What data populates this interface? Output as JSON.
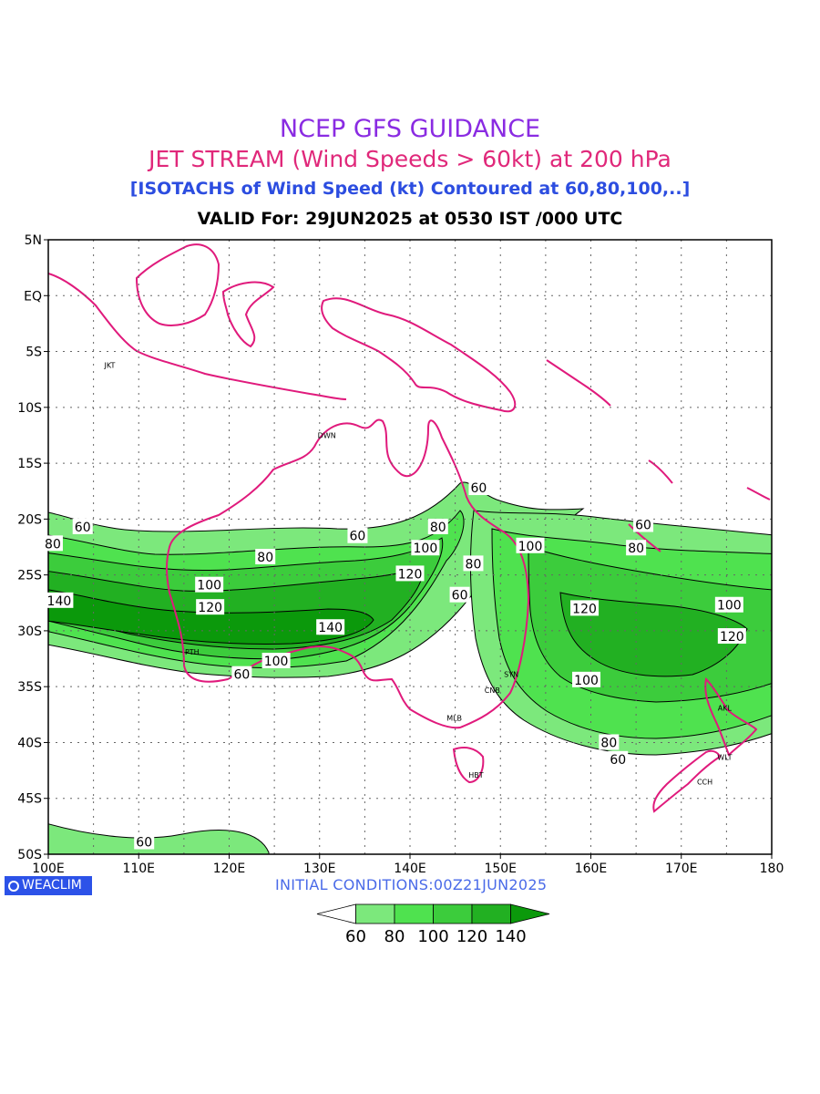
{
  "titles": {
    "line1": "NCEP GFS GUIDANCE",
    "line2": "JET STREAM (Wind Speeds > 60kt) at 200 hPa",
    "line3": "[ISOTACHS of Wind Speed (kt) Contoured at 60,80,100,..]",
    "line4": "VALID For: 29JUN2025 at 0530 IST /000 UTC"
  },
  "logo": "WEACLIM",
  "initial_conditions": "INITIAL  CONDITIONS:00Z21JUN2025",
  "axes": {
    "lat_labels": [
      "5N",
      "EQ",
      "5S",
      "10S",
      "15S",
      "20S",
      "25S",
      "30S",
      "35S",
      "40S",
      "45S",
      "50S"
    ],
    "lon_labels": [
      "100E",
      "110E",
      "120E",
      "130E",
      "140E",
      "150E",
      "160E",
      "170E",
      "180"
    ]
  },
  "cities": [
    {
      "code": "JKT",
      "lon": 106.8,
      "lat": -6.2
    },
    {
      "code": "DWN",
      "lon": 130.8,
      "lat": -12.5
    },
    {
      "code": "PTH",
      "lon": 115.9,
      "lat": -31.9
    },
    {
      "code": "SYN",
      "lon": 151.2,
      "lat": -33.9
    },
    {
      "code": "CNB",
      "lon": 149.1,
      "lat": -35.3
    },
    {
      "code": "MLB",
      "lon": 144.9,
      "lat": -37.8
    },
    {
      "code": "HBT",
      "lon": 147.3,
      "lat": -42.9
    },
    {
      "code": "AKL",
      "lon": 174.8,
      "lat": -36.9
    },
    {
      "code": "WLT",
      "lon": 174.8,
      "lat": -41.3
    },
    {
      "code": "CCH",
      "lon": 172.6,
      "lat": -43.5
    }
  ],
  "contour_labels": [
    {
      "text": "60",
      "lon": 103.8,
      "lat": -20.7
    },
    {
      "text": "80",
      "lon": 100.5,
      "lat": -22.2
    },
    {
      "text": "140",
      "lon": 101.2,
      "lat": -27.3
    },
    {
      "text": "100",
      "lon": 117.8,
      "lat": -25.9
    },
    {
      "text": "120",
      "lon": 117.9,
      "lat": -27.9
    },
    {
      "text": "80",
      "lon": 124.0,
      "lat": -23.4
    },
    {
      "text": "60",
      "lon": 134.2,
      "lat": -21.5
    },
    {
      "text": "100",
      "lon": 141.7,
      "lat": -22.6
    },
    {
      "text": "120",
      "lon": 140.0,
      "lat": -24.9
    },
    {
      "text": "80",
      "lon": 143.1,
      "lat": -20.7
    },
    {
      "text": "60",
      "lon": 147.6,
      "lat": -17.2
    },
    {
      "text": "80",
      "lon": 147.0,
      "lat": -24.0
    },
    {
      "text": "60",
      "lon": 145.5,
      "lat": -26.8
    },
    {
      "text": "140",
      "lon": 131.2,
      "lat": -29.7
    },
    {
      "text": "100",
      "lon": 125.2,
      "lat": -32.7
    },
    {
      "text": "60",
      "lon": 121.4,
      "lat": -33.9
    },
    {
      "text": "100",
      "lon": 153.3,
      "lat": -22.4
    },
    {
      "text": "60",
      "lon": 165.8,
      "lat": -20.5
    },
    {
      "text": "80",
      "lon": 165.0,
      "lat": -22.6
    },
    {
      "text": "120",
      "lon": 159.3,
      "lat": -28.0
    },
    {
      "text": "100",
      "lon": 175.3,
      "lat": -27.7
    },
    {
      "text": "120",
      "lon": 175.6,
      "lat": -30.5
    },
    {
      "text": "100",
      "lon": 159.5,
      "lat": -34.4
    },
    {
      "text": "80",
      "lon": 162.0,
      "lat": -40.0
    },
    {
      "text": "60",
      "lon": 163.0,
      "lat": -41.5
    },
    {
      "text": "60",
      "lon": 110.6,
      "lat": -48.9
    }
  ],
  "colorbar": {
    "labels": [
      "60",
      "80",
      "100",
      "120",
      "140"
    ],
    "colors": [
      "#ffffff",
      "#7ce87c",
      "#4fe24f",
      "#3ccc3c",
      "#22b022",
      "#0b990b"
    ]
  },
  "legend_colors": {
    "c60": "#7ce87c",
    "c80": "#4fe24f",
    "c100": "#3ccc3c",
    "c120": "#22b022",
    "c140": "#0b990b",
    "coast": "#e01a7c"
  }
}
